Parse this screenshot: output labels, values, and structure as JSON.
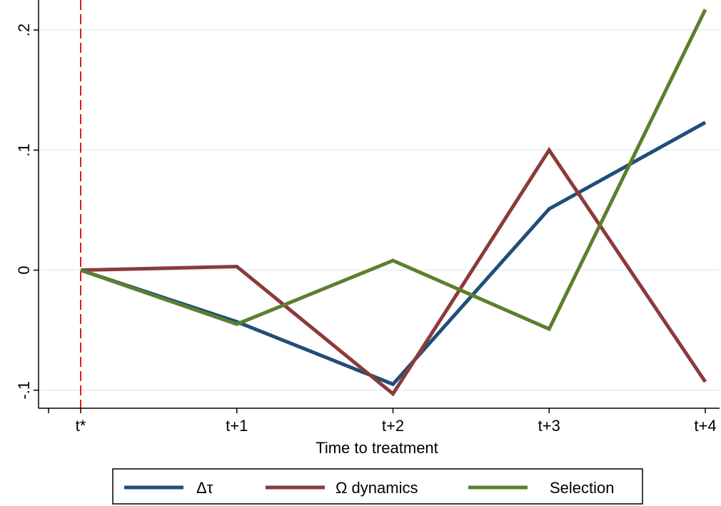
{
  "chart_data": {
    "type": "line",
    "title": "",
    "xlabel": "Time to treatment",
    "ylabel": "",
    "categories": [
      "t*",
      "t+1",
      "t+2",
      "t+3",
      "t+4"
    ],
    "y_ticks": [
      {
        "value": -0.1,
        "label": "-.1"
      },
      {
        "value": 0,
        "label": "0"
      },
      {
        "value": 0.1,
        "label": ".1"
      },
      {
        "value": 0.2,
        "label": ".2"
      }
    ],
    "ylim": [
      -0.115,
      0.225
    ],
    "grid": true,
    "reference_line": {
      "x_category": "t*",
      "color": "#e31a1c",
      "style": "dashed"
    },
    "legend_position": "bottom",
    "series": [
      {
        "name": "Δτ",
        "color": "#1f4e79",
        "values": [
          0,
          -0.043,
          -0.095,
          0.051,
          0.123
        ]
      },
      {
        "name": "Ω dynamics",
        "color": "#8b3a3a",
        "values": [
          0,
          0.003,
          -0.103,
          0.1,
          -0.093
        ]
      },
      {
        "name": "Selection",
        "color": "#5b7f2e",
        "values": [
          0,
          -0.045,
          0.008,
          -0.049,
          0.217
        ]
      }
    ]
  }
}
